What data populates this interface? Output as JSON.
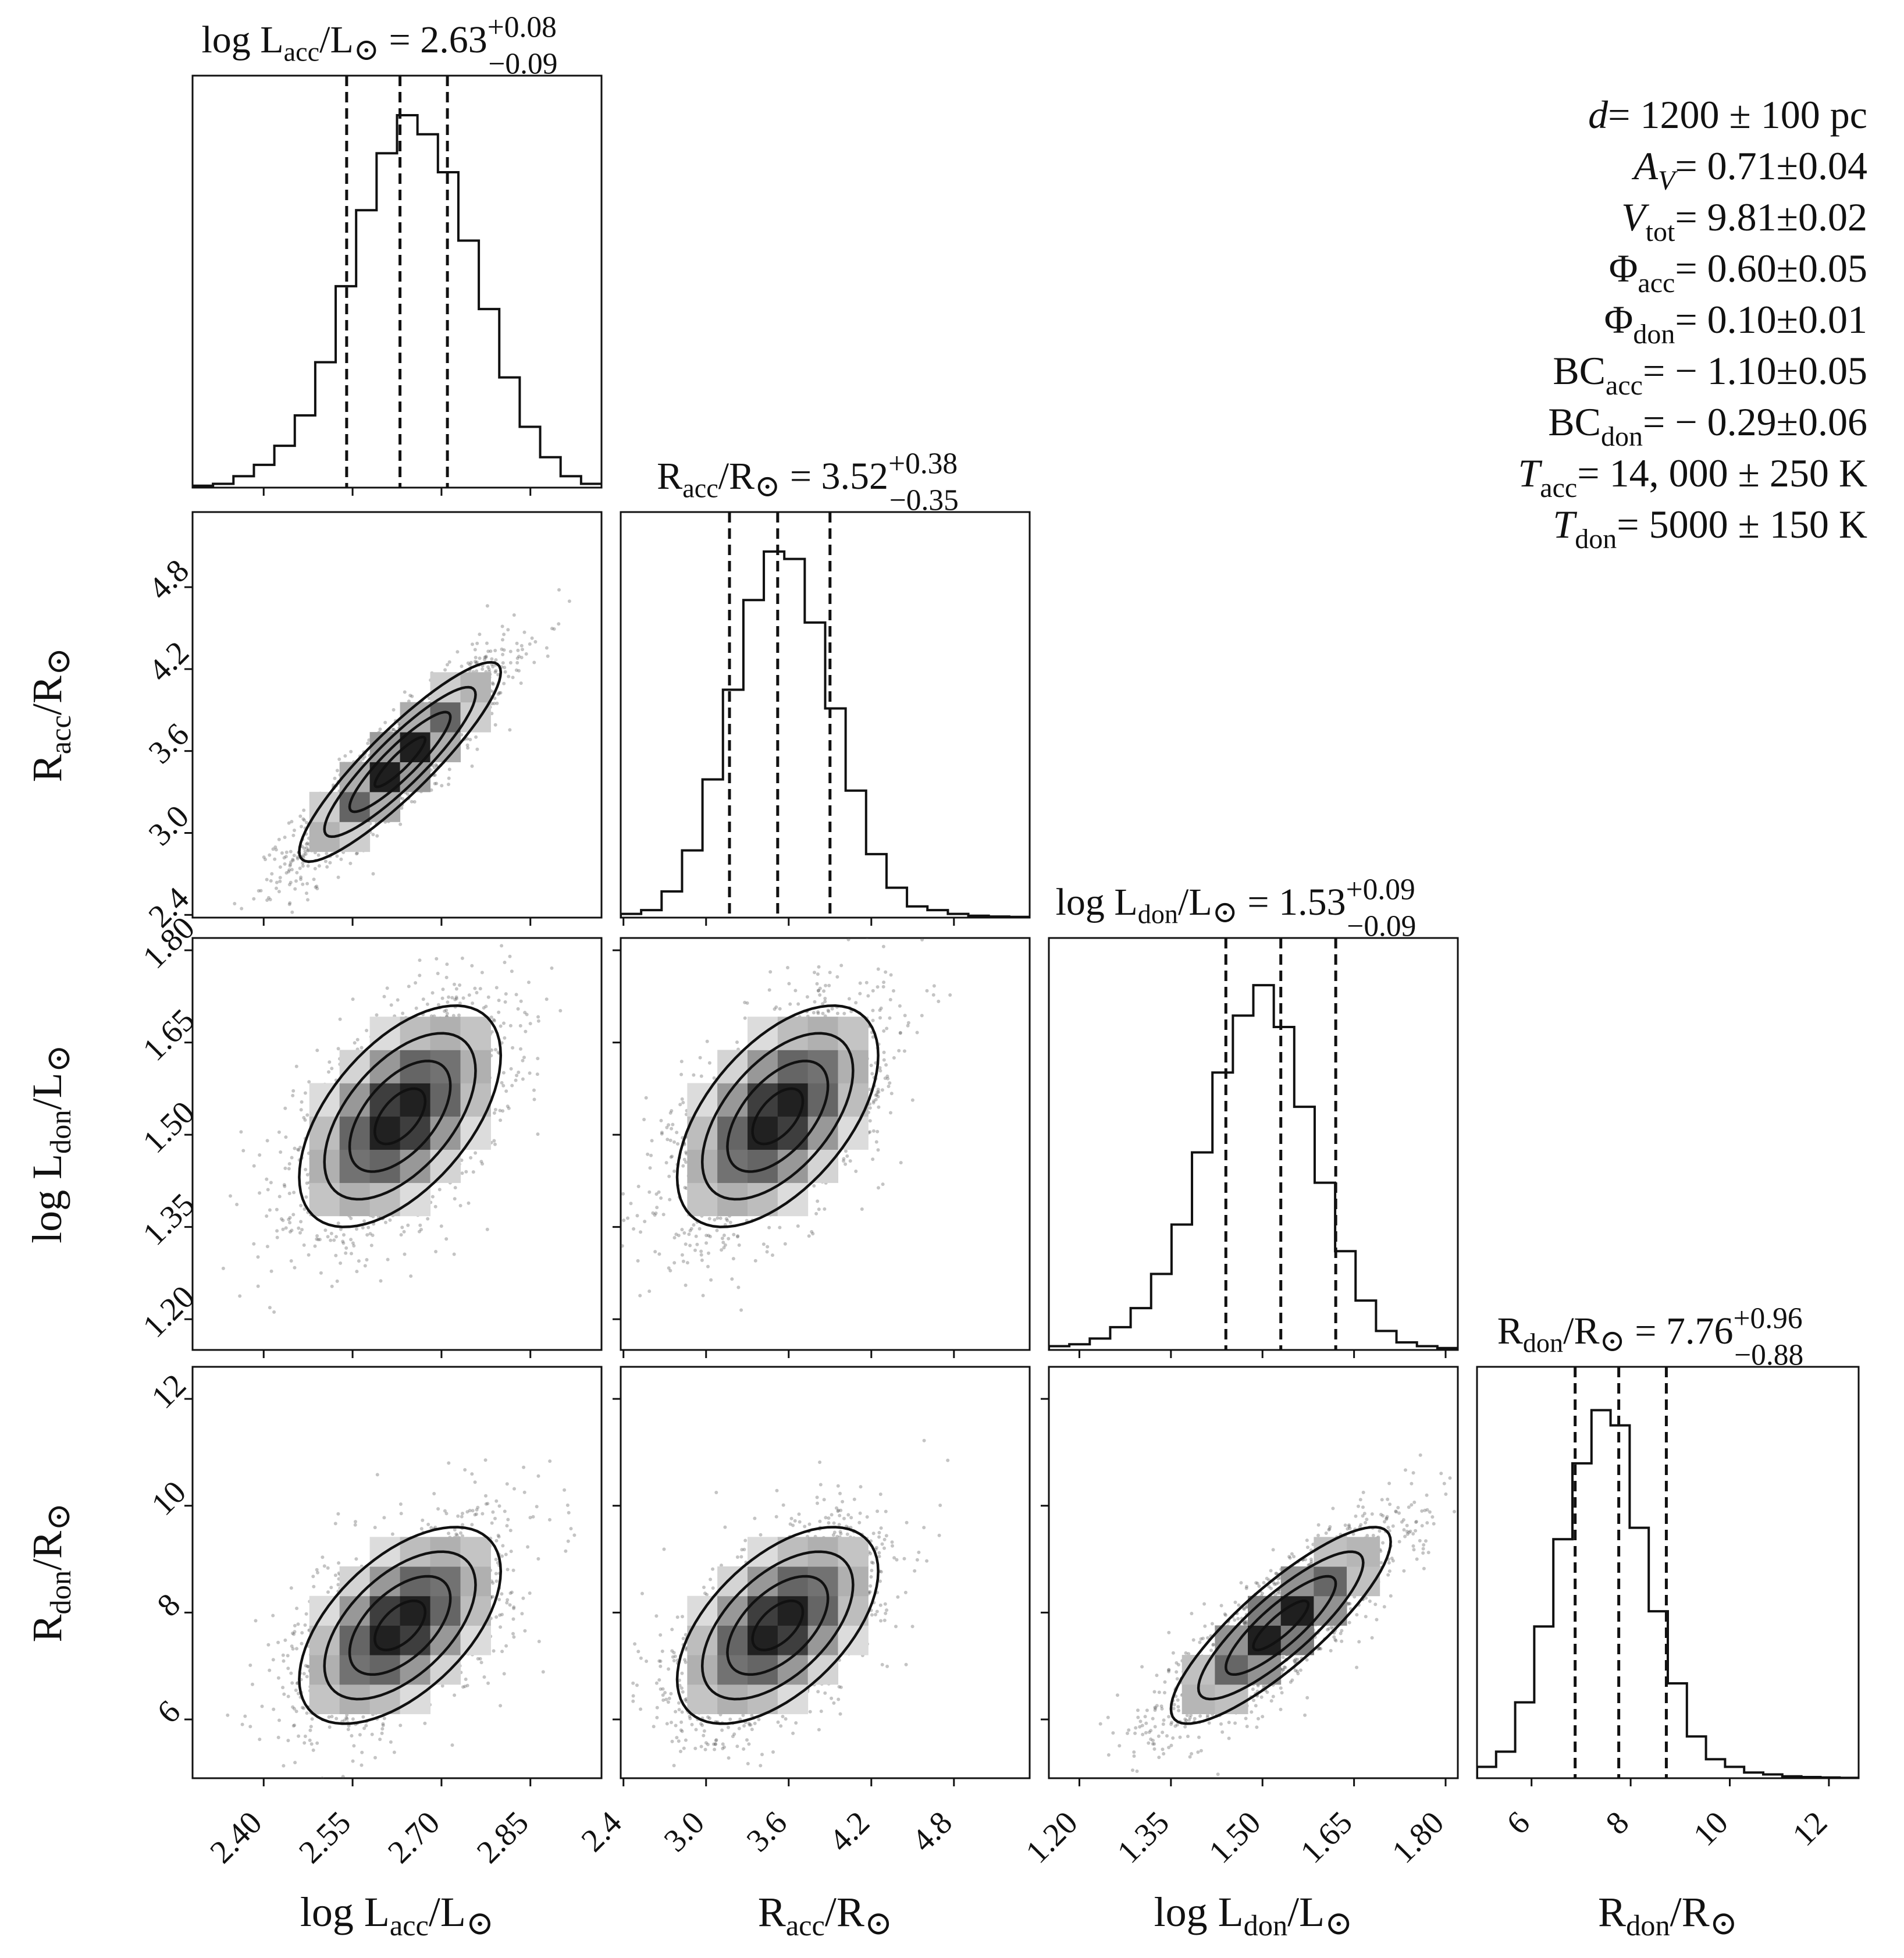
{
  "chart_data": {
    "type": "corner",
    "parameters": [
      {
        "key": "logLacc",
        "base": "log L",
        "sub": "acc",
        "sep": "/L",
        "sun": true,
        "tail": "",
        "median": 2.63,
        "plus": "+0.08",
        "minus": "−0.09",
        "median_label": "2.63",
        "range": [
          2.28,
          2.97
        ],
        "ticks": [
          2.4,
          2.55,
          2.7,
          2.85
        ],
        "tick_labels": [
          "2.40",
          "2.55",
          "2.70",
          "2.85"
        ],
        "quantiles": [
          2.54,
          2.63,
          2.71
        ]
      },
      {
        "key": "Racc",
        "base": "R",
        "sub": "acc",
        "sep": "/R",
        "sun": true,
        "tail": "",
        "median": 3.52,
        "plus": "+0.38",
        "minus": "−0.35",
        "median_label": "3.52",
        "range": [
          2.38,
          5.35
        ],
        "ticks": [
          2.4,
          3.0,
          3.6,
          4.2,
          4.8
        ],
        "tick_labels": [
          "2.4",
          "3.0",
          "3.6",
          "4.2",
          "4.8"
        ],
        "quantiles": [
          3.17,
          3.52,
          3.9
        ]
      },
      {
        "key": "logLdon",
        "base": "log L",
        "sub": "don",
        "sep": "/L",
        "sun": true,
        "tail": "",
        "median": 1.53,
        "plus": "+0.09",
        "minus": "−0.09",
        "median_label": "1.53",
        "range": [
          1.15,
          1.82
        ],
        "ticks": [
          1.2,
          1.35,
          1.5,
          1.65,
          1.8
        ],
        "tick_labels": [
          "1.20",
          "1.35",
          "1.50",
          "1.65",
          "1.80"
        ],
        "quantiles": [
          1.44,
          1.53,
          1.62
        ]
      },
      {
        "key": "Rdon",
        "base": "R",
        "sub": "don",
        "sep": "/R",
        "sun": true,
        "tail": "",
        "median": 7.76,
        "plus": "+0.96",
        "minus": "−0.88",
        "median_label": "7.76",
        "range": [
          4.9,
          12.6
        ],
        "ticks": [
          6,
          8,
          10,
          12
        ],
        "tick_labels": [
          "6",
          "8",
          "10",
          "12"
        ],
        "quantiles": [
          6.88,
          7.76,
          8.72
        ]
      }
    ],
    "histograms": [
      {
        "edges_start": 2.28,
        "bin": 0.0345,
        "counts": [
          0.005,
          0.01,
          0.03,
          0.06,
          0.11,
          0.19,
          0.33,
          0.53,
          0.73,
          0.88,
          0.98,
          0.93,
          0.83,
          0.65,
          0.47,
          0.29,
          0.16,
          0.08,
          0.03,
          0.01
        ]
      },
      {
        "edges_start": 2.38,
        "bin": 0.1485,
        "counts": [
          0.01,
          0.02,
          0.07,
          0.18,
          0.37,
          0.61,
          0.85,
          0.98,
          0.96,
          0.79,
          0.56,
          0.34,
          0.17,
          0.08,
          0.03,
          0.02,
          0.01,
          0.005,
          0.003,
          0.002
        ]
      },
      {
        "edges_start": 1.15,
        "bin": 0.0335,
        "counts": [
          0.01,
          0.015,
          0.03,
          0.06,
          0.11,
          0.2,
          0.33,
          0.52,
          0.73,
          0.88,
          0.96,
          0.85,
          0.64,
          0.44,
          0.26,
          0.13,
          0.05,
          0.02,
          0.01,
          0.005
        ]
      },
      {
        "edges_start": 4.9,
        "bin": 0.385,
        "counts": [
          0.03,
          0.07,
          0.2,
          0.4,
          0.63,
          0.83,
          0.97,
          0.93,
          0.66,
          0.44,
          0.25,
          0.11,
          0.05,
          0.03,
          0.015,
          0.01,
          0.005,
          0.003,
          0.002,
          0.001
        ]
      }
    ],
    "correlations": {
      "1,0": 0.9,
      "2,0": 0.55,
      "2,1": 0.55,
      "3,0": 0.55,
      "3,1": 0.55,
      "3,2": 0.85
    },
    "summary": [
      {
        "label": "d",
        "italic": true,
        "sub": "",
        "value": "= 1200 ± 100 pc"
      },
      {
        "label": "A",
        "italic": true,
        "sub": "V",
        "sub_italic": true,
        "value": "= 0.71±0.04"
      },
      {
        "label": "V",
        "italic": true,
        "sub": "tot",
        "value": "= 9.81±0.02"
      },
      {
        "label": "Φ",
        "italic": false,
        "sub": "acc",
        "value": "= 0.60±0.05"
      },
      {
        "label": "Φ",
        "italic": false,
        "sub": "don",
        "value": "= 0.10±0.01"
      },
      {
        "label": "BC",
        "italic": false,
        "sub": "acc",
        "value": "= − 1.10±0.05"
      },
      {
        "label": "BC",
        "italic": false,
        "sub": "don",
        "value": "= − 0.29±0.06"
      },
      {
        "label": "T",
        "italic": true,
        "sub": "acc",
        "value": "= 14, 000 ± 250 K"
      },
      {
        "label": "T",
        "italic": true,
        "sub": "don",
        "value": "= 5000 ± 150 K"
      }
    ]
  }
}
